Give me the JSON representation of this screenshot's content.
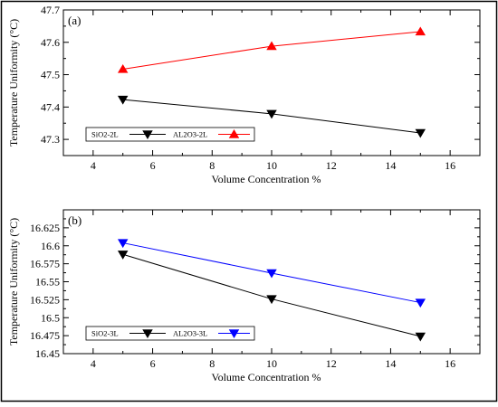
{
  "chart_data": [
    {
      "type": "line",
      "panel_label": "(a)",
      "title": "",
      "xlabel": "Volume Concentration %",
      "ylabel": "Temperature Uniformity (°C)",
      "xlim": [
        3,
        17
      ],
      "ylim": [
        47.25,
        47.7
      ],
      "x_ticks": [
        4,
        6,
        8,
        10,
        12,
        14,
        16
      ],
      "y_ticks": [
        "47.3",
        "47.4",
        "47.5",
        "47.6",
        "47.7"
      ],
      "y_tick_values": [
        47.3,
        47.4,
        47.5,
        47.6,
        47.7
      ],
      "grid": false,
      "legend_position": "bottom-left",
      "series": [
        {
          "name": "SiO2-2L",
          "color": "#000000",
          "marker": "triangle-down",
          "x": [
            5,
            10,
            15
          ],
          "y": [
            47.423,
            47.379,
            47.32
          ]
        },
        {
          "name": "AL2O3-2L",
          "color": "#ff0000",
          "marker": "triangle-up",
          "x": [
            5,
            10,
            15
          ],
          "y": [
            47.517,
            47.588,
            47.633
          ]
        }
      ]
    },
    {
      "type": "line",
      "panel_label": "(b)",
      "title": "",
      "xlabel": "Volume Concentration %",
      "ylabel": "Temperature Uniformity (°C)",
      "xlim": [
        3,
        17
      ],
      "ylim": [
        16.45,
        16.65
      ],
      "x_ticks": [
        4,
        6,
        8,
        10,
        12,
        14,
        16
      ],
      "y_ticks": [
        "16.45",
        "16.475",
        "16.5",
        "16.525",
        "16.55",
        "16.575",
        "16.6",
        "16.625"
      ],
      "y_tick_values": [
        16.45,
        16.475,
        16.5,
        16.525,
        16.55,
        16.575,
        16.6,
        16.625
      ],
      "grid": false,
      "legend_position": "bottom-left",
      "series": [
        {
          "name": "SiO2-3L",
          "color": "#000000",
          "marker": "triangle-down",
          "x": [
            5,
            10,
            15
          ],
          "y": [
            16.588,
            16.526,
            16.474
          ]
        },
        {
          "name": "AL2O3-3L",
          "color": "#0000ff",
          "marker": "triangle-down",
          "x": [
            5,
            10,
            15
          ],
          "y": [
            16.604,
            16.562,
            16.521
          ]
        }
      ]
    }
  ]
}
